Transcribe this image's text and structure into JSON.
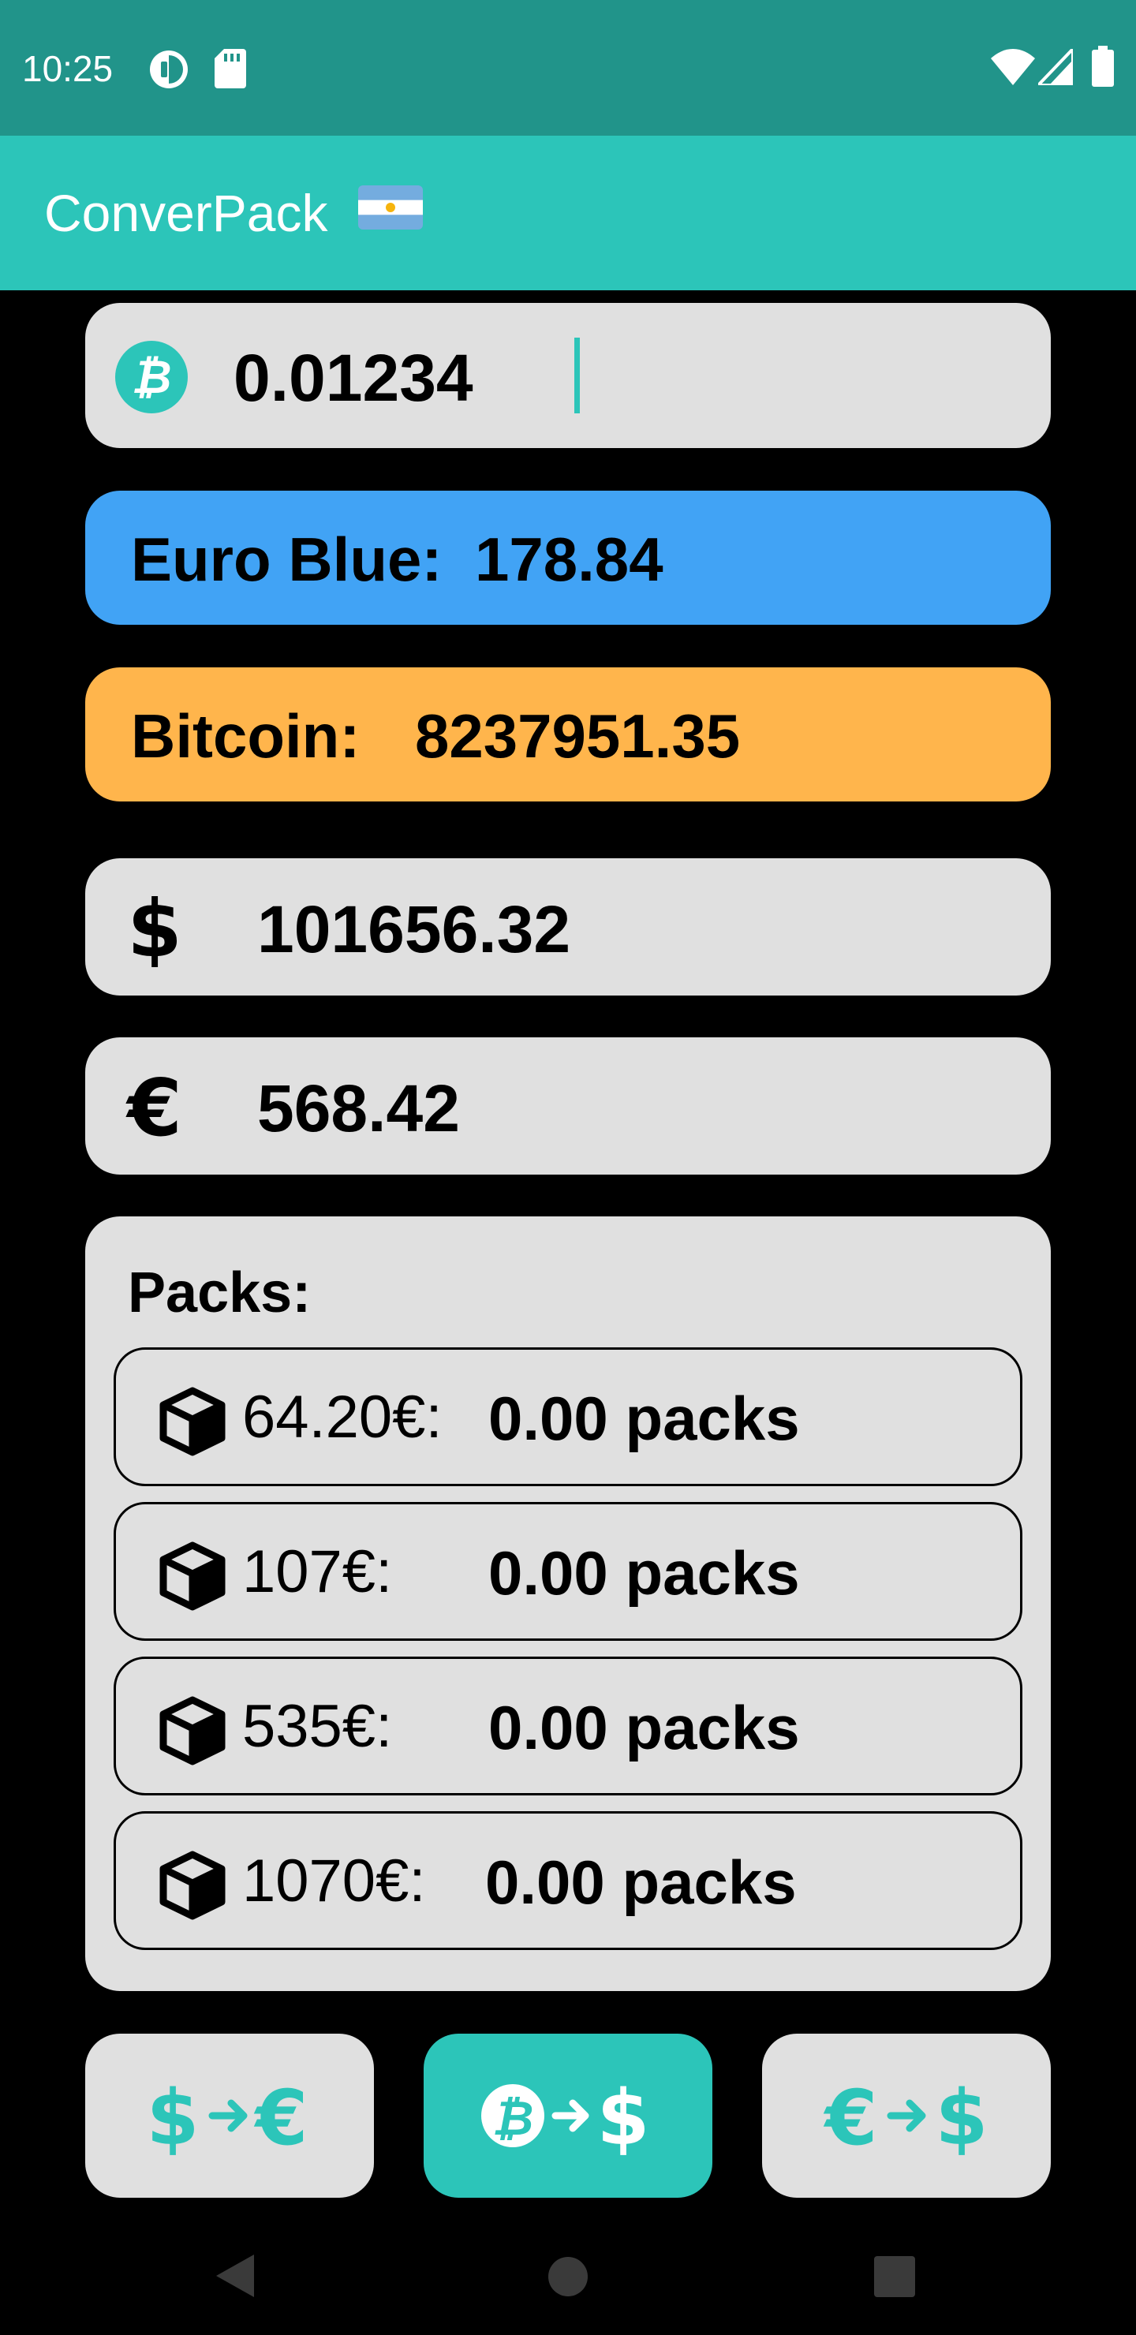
{
  "status_bar": {
    "time": "10:25",
    "icons": [
      "data-saver-icon",
      "sd-card-icon",
      "wifi-icon",
      "signal-icon",
      "battery-icon"
    ]
  },
  "app_bar": {
    "title": "ConverPack",
    "flag": "argentina-flag"
  },
  "input": {
    "currency_icon": "bitcoin-icon",
    "value": "0.01234"
  },
  "rates": {
    "euro_blue": {
      "label": "Euro Blue:",
      "value": "178.84"
    },
    "bitcoin": {
      "label": "Bitcoin:",
      "value": "8237951.35"
    }
  },
  "results": {
    "usd": {
      "symbol": "$",
      "value": "101656.32"
    },
    "eur": {
      "symbol": "€",
      "value": "568.42"
    }
  },
  "packs": {
    "title": "Packs:",
    "items": [
      {
        "price": "64.20€:",
        "count": "0.00 packs"
      },
      {
        "price": "107€:",
        "count": "0.00 packs"
      },
      {
        "price": "535€:",
        "count": "0.00 packs"
      },
      {
        "price": "1070€:",
        "count": "0.00 packs"
      }
    ]
  },
  "modes": [
    {
      "name": "usd-to-eur",
      "active": false
    },
    {
      "name": "btc-to-usd",
      "active": true
    },
    {
      "name": "eur-to-usd",
      "active": false
    }
  ],
  "colors": {
    "status_bar": "#21948A",
    "app_bar": "#2CC5B9",
    "accent": "#2CC5B9",
    "euro_blue_card": "#41A3F5",
    "bitcoin_card": "#FFB54C",
    "card": "#E0E0E0"
  }
}
